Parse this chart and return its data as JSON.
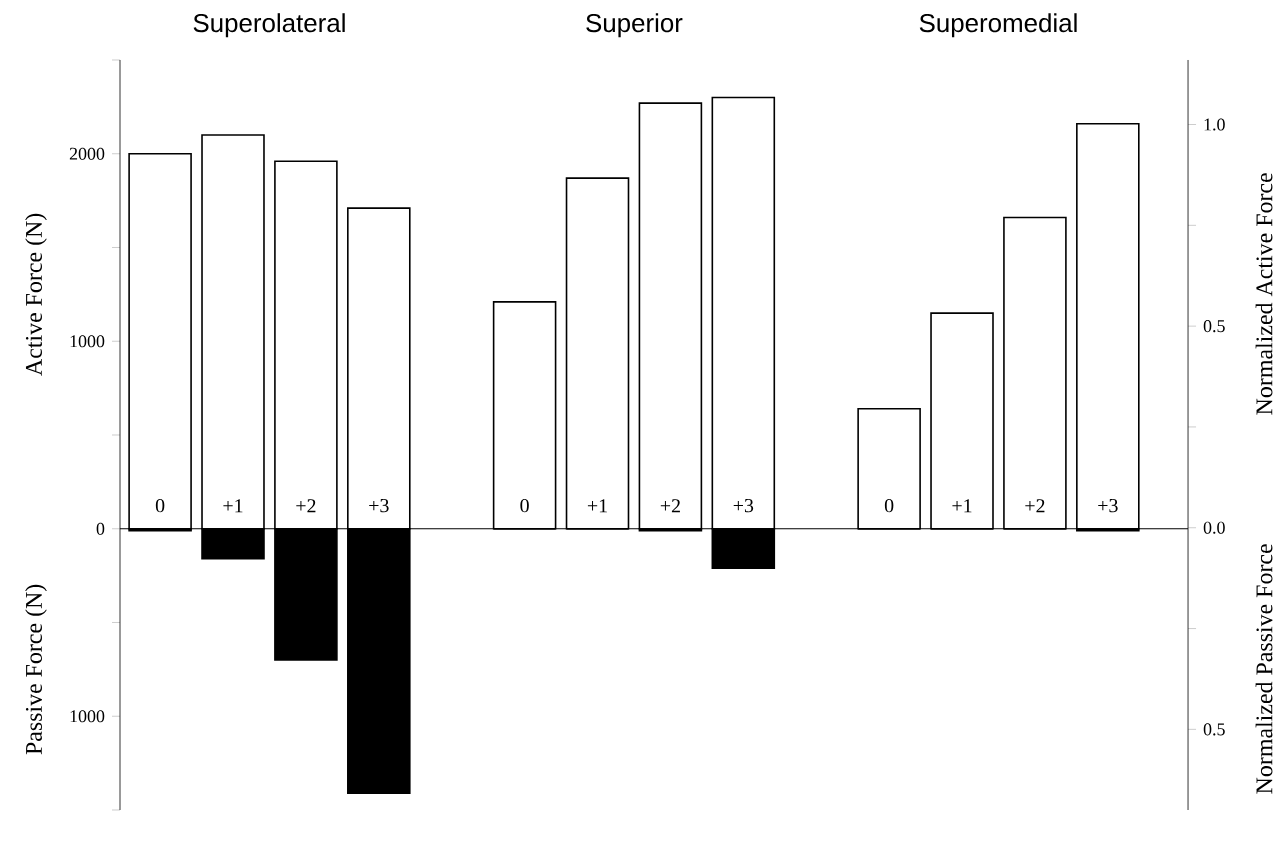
{
  "chart_data": {
    "type": "bar",
    "ylabel": "Active Force (N)",
    "y2label": "Normalized Active Force",
    "annotations": [
      "Superolateral",
      "Superior",
      "Superomedial",
      "Passive Force (N)",
      "Normalized Passive Force"
    ],
    "categories": [
      "0",
      "+1",
      "+2",
      "+3",
      null,
      "0",
      "+1",
      "+2",
      "+3",
      null,
      "0",
      "+1",
      "+2",
      "+3"
    ],
    "series": [
      {
        "color": "#ffffff",
        "values": [
          2000,
          2100,
          1960,
          1710,
          null,
          1210,
          1870,
          2270,
          2300,
          null,
          640,
          1150,
          1660,
          2160
        ]
      },
      {
        "color": "#000000",
        "values": [
          -10,
          -160,
          -700,
          -1410,
          null,
          0,
          0,
          -10,
          -210,
          null,
          0,
          0,
          0,
          -10
        ]
      }
    ],
    "ylim": [
      -1500,
      2500
    ],
    "yticks": [
      {
        "value": -1500,
        "label": null
      },
      {
        "value": -1000,
        "label": "1000"
      },
      {
        "value": -500,
        "label": null
      },
      0,
      {
        "value": 500,
        "label": null
      },
      1000,
      {
        "value": 1500,
        "label": null
      },
      2000,
      {
        "value": 2500,
        "label": null
      }
    ],
    "y2lim": [
      -0.7,
      1.16
    ],
    "y2ticks": [
      {
        "value": -0.5,
        "label": "0.5"
      },
      {
        "value": -0.25,
        "label": null
      },
      {
        "value": 0,
        "label": "0.0"
      },
      {
        "value": 0.25,
        "label": null
      },
      {
        "value": 0.5,
        "label": "0.5"
      },
      {
        "value": 0.75,
        "label": null
      },
      {
        "value": 1.0,
        "label": "1.0"
      }
    ]
  }
}
